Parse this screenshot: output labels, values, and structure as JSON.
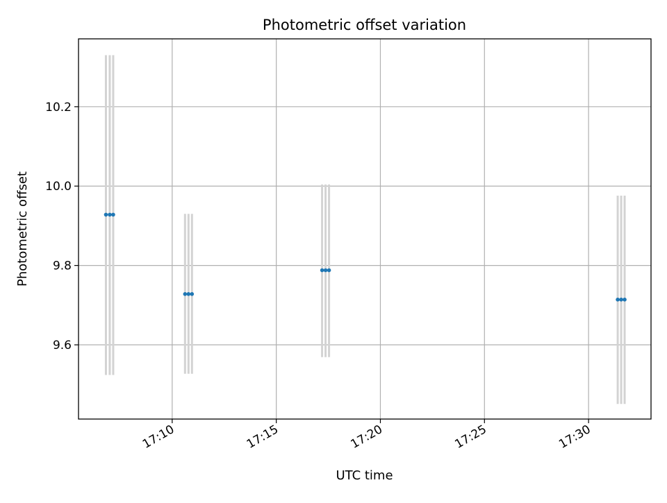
{
  "chart_data": {
    "type": "scatter",
    "title": "Photometric offset variation",
    "xlabel": "UTC time",
    "ylabel": "Photometric offset",
    "x_axis": {
      "kind": "time",
      "range": [
        "17:05:30",
        "17:33:00"
      ],
      "tick_values": [
        "17:10",
        "17:15",
        "17:20",
        "17:25",
        "17:30"
      ],
      "tick_labels": [
        "17:10",
        "17:15",
        "17:20",
        "17:25",
        "17:30"
      ],
      "tick_label_rotation_deg": 30
    },
    "y_axis": {
      "range": [
        9.413,
        10.371
      ],
      "tick_values": [
        9.6,
        9.8,
        10.0,
        10.2
      ],
      "tick_labels": [
        "9.6",
        "9.8",
        "10.0",
        "10.2"
      ]
    },
    "grid": true,
    "legend": "none",
    "colors": {
      "marker": "#1f77b4",
      "error_bar": "#d3d3d3",
      "grid": "#b0b0b0",
      "axes": "#000000"
    },
    "series": [
      {
        "points": [
          {
            "x": "17:06:49",
            "y": 9.928,
            "yerr_low": 9.524,
            "yerr_high": 10.33
          },
          {
            "x": "17:07:00",
            "y": 9.928,
            "yerr_low": 9.524,
            "yerr_high": 10.33
          },
          {
            "x": "17:07:10",
            "y": 9.928,
            "yerr_low": 9.524,
            "yerr_high": 10.33
          },
          {
            "x": "17:10:37",
            "y": 9.728,
            "yerr_low": 9.527,
            "yerr_high": 9.93
          },
          {
            "x": "17:10:47",
            "y": 9.728,
            "yerr_low": 9.527,
            "yerr_high": 9.93
          },
          {
            "x": "17:10:57",
            "y": 9.728,
            "yerr_low": 9.527,
            "yerr_high": 9.93
          },
          {
            "x": "17:17:12",
            "y": 9.788,
            "yerr_low": 9.569,
            "yerr_high": 10.004
          },
          {
            "x": "17:17:22",
            "y": 9.788,
            "yerr_low": 9.569,
            "yerr_high": 10.004
          },
          {
            "x": "17:17:32",
            "y": 9.788,
            "yerr_low": 9.569,
            "yerr_high": 10.004
          },
          {
            "x": "17:31:24",
            "y": 9.714,
            "yerr_low": 9.451,
            "yerr_high": 9.976
          },
          {
            "x": "17:31:34",
            "y": 9.714,
            "yerr_low": 9.451,
            "yerr_high": 9.976
          },
          {
            "x": "17:31:44",
            "y": 9.714,
            "yerr_low": 9.451,
            "yerr_high": 9.976
          }
        ]
      }
    ]
  }
}
